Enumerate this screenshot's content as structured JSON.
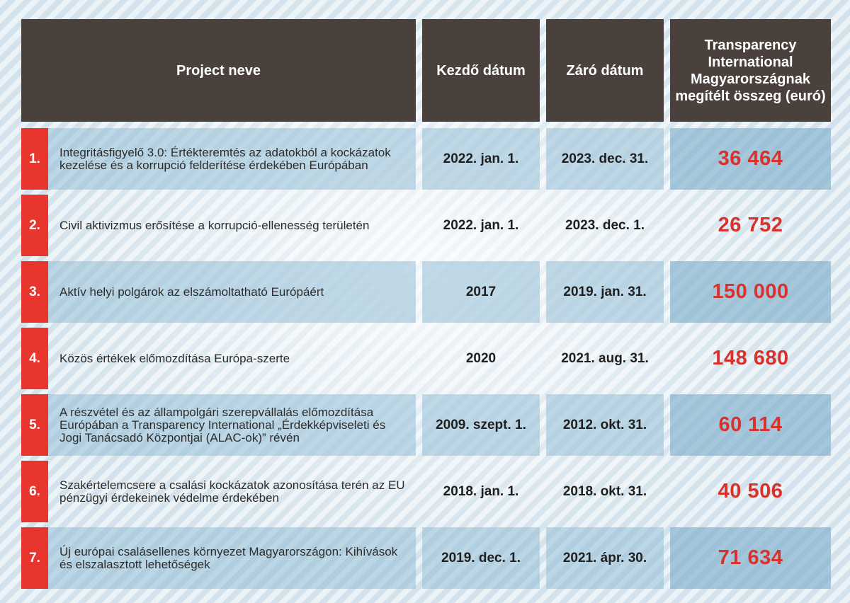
{
  "header": {
    "name": "Project neve",
    "start": "Kezdő dátum",
    "end": "Záró dátum",
    "amount": "Transparency International Magyarországnak megítélt összeg (euró)"
  },
  "rows": [
    {
      "num": "1.",
      "name": "Integritásfigyelő 3.0: Értékteremtés az adatokból a kockázatok kezelése és a korrupció felderítése érdekében Európában",
      "start": "2022. jan. 1.",
      "end": "2023. dec. 31.",
      "amount": "36 464"
    },
    {
      "num": "2.",
      "name": "Civil aktivizmus erősítése a korrupció-ellenesség területén",
      "start": "2022. jan. 1.",
      "end": "2023. dec. 1.",
      "amount": "26 752"
    },
    {
      "num": "3.",
      "name": "Aktív helyi polgárok az elszámoltatható Európáért",
      "start": "2017",
      "end": "2019. jan. 31.",
      "amount": "150 000"
    },
    {
      "num": "4.",
      "name": "Közös értékek előmozdítása Európa-szerte",
      "start": "2020",
      "end": "2021. aug. 31.",
      "amount": "148 680"
    },
    {
      "num": "5.",
      "name": "A részvétel és az állampolgári szerepvállalás előmozdítása Európában a Transparency International „Érdekképviseleti és Jogi Tanácsadó Központjai (ALAC-ok)” révén",
      "start": "2009. szept. 1.",
      "end": "2012. okt. 31.",
      "amount": "60 114"
    },
    {
      "num": "6.",
      "name": "Szakértelemcsere a csalási kockázatok azonosítása terén az EU pénzügyi érdekeinek védelme érdekében",
      "start": "2018. jan. 1.",
      "end": "2018. okt. 31.",
      "amount": "40 506"
    },
    {
      "num": "7.",
      "name": "Új európai csalásellenes környezet Magyarországon: Kihívások és elszalasztott lehetőségek",
      "start": "2019. dec. 1.",
      "end": "2021. ápr. 30.",
      "amount": "71 634"
    }
  ]
}
